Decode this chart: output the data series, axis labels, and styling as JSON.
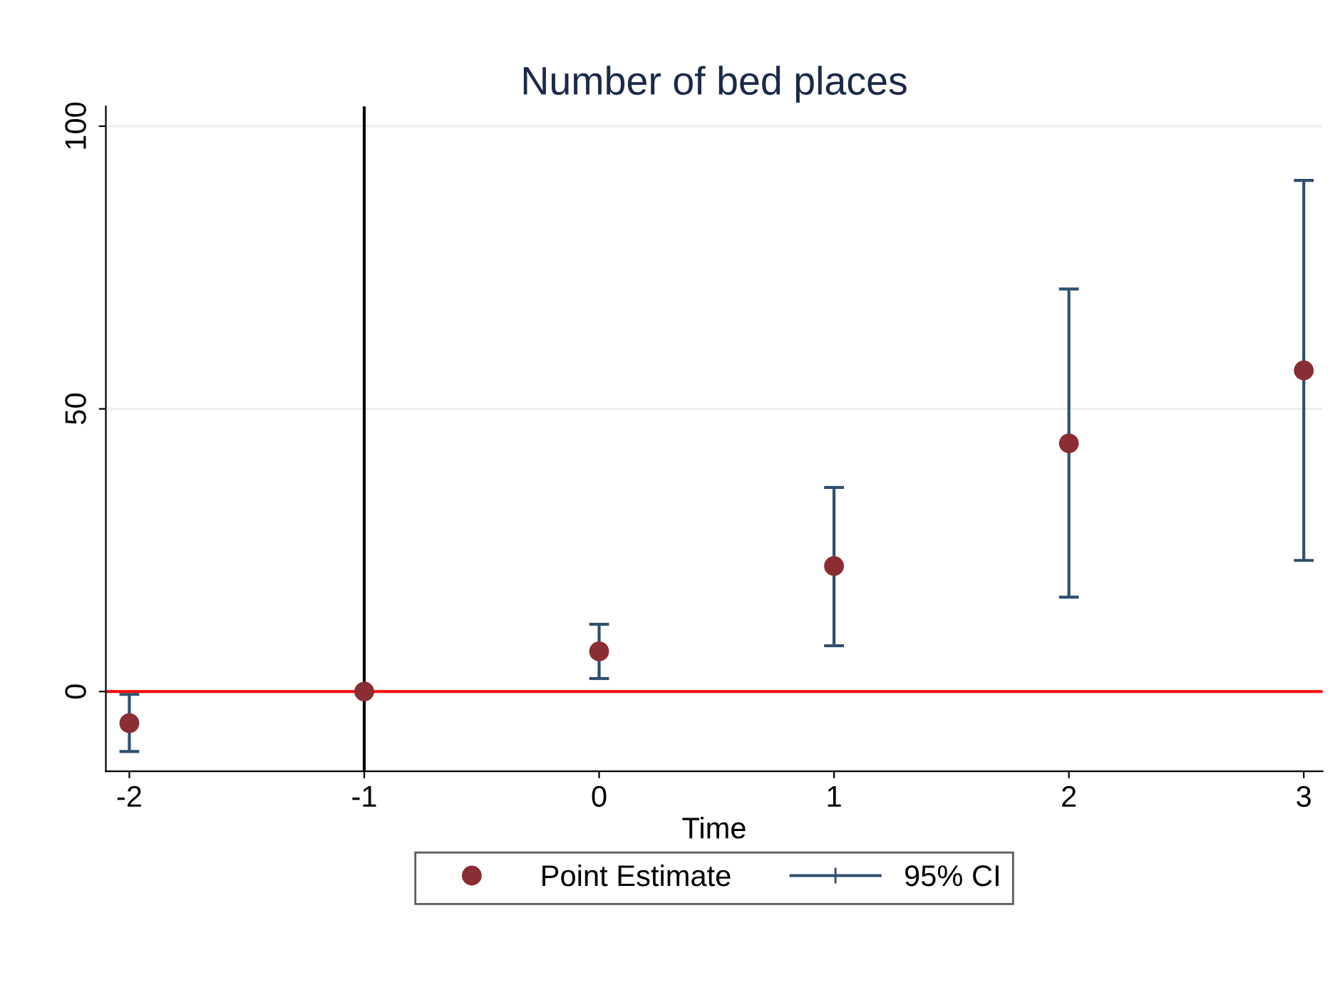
{
  "chart_data": {
    "type": "scatter",
    "title": "Number of bed places",
    "xlabel": "Time",
    "x": [
      -2,
      -1,
      0,
      1,
      2,
      3
    ],
    "series": [
      {
        "name": "Point Estimate",
        "color": "#8b2e33",
        "values": [
          -5.6,
          0,
          7.1,
          22.2,
          43.9,
          56.8
        ],
        "errors": [
          [
            -10.6,
            -0.5
          ],
          null,
          [
            2.3,
            11.9
          ],
          [
            8.1,
            36.1
          ],
          [
            16.7,
            71.2
          ],
          [
            23.2,
            90.4
          ]
        ]
      }
    ],
    "annotations": [
      "95% CI"
    ],
    "xlim": [
      -2.1,
      3.08
    ],
    "ylim": [
      -14.1,
      103.5
    ],
    "xticks": [
      -2,
      -1,
      0,
      1,
      2,
      3
    ],
    "yticks": [
      0,
      50,
      100
    ],
    "ref_lines": [
      {
        "axis": "x",
        "value": -1,
        "color": "#000000"
      },
      {
        "axis": "y",
        "value": 0,
        "color": "#ff0000"
      }
    ],
    "grid": "y",
    "legend": "bottom",
    "marker": "circle"
  }
}
